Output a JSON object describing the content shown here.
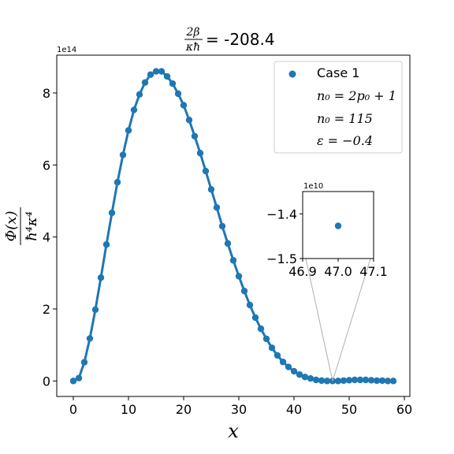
{
  "chart_data": {
    "type": "line",
    "title": {
      "numerator": "2β",
      "denominator": "κħ",
      "value": "= -208.4"
    },
    "xlabel": "x",
    "ylabel": {
      "numerator": "Φ(x)",
      "denominator": "ħ⁴κ⁴"
    },
    "xlim": [
      -3,
      61
    ],
    "ylim": [
      -0.43,
      9.05
    ],
    "y_offset_text": "1e14",
    "x_ticks": [
      0,
      10,
      20,
      30,
      40,
      50,
      60
    ],
    "y_ticks": [
      0,
      2,
      4,
      6,
      8
    ],
    "x_tick_labels": [
      "0",
      "10",
      "20",
      "30",
      "40",
      "50",
      "60"
    ],
    "y_tick_labels": [
      "0",
      "2",
      "4",
      "6",
      "8"
    ],
    "color": "#1f77b4",
    "grid": false,
    "legend": {
      "position": "top-right",
      "marker_label": "Case 1",
      "lines": [
        "n₀ = 2p₀ + 1",
        "n₀ = 115",
        "ε = −0.4"
      ]
    },
    "series": [
      {
        "name": "Case 1",
        "x": [
          0,
          1,
          2,
          3,
          4,
          5,
          6,
          7,
          8,
          9,
          10,
          11,
          12,
          13,
          14,
          15,
          16,
          17,
          18,
          19,
          20,
          21,
          22,
          23,
          24,
          25,
          26,
          27,
          28,
          29,
          30,
          31,
          32,
          33,
          34,
          35,
          36,
          37,
          38,
          39,
          40,
          41,
          42,
          43,
          44,
          45,
          46,
          47,
          48,
          49,
          50,
          51,
          52,
          53,
          54,
          55,
          56,
          57,
          58
        ],
        "y": [
          0,
          0.08,
          0.52,
          1.18,
          1.98,
          2.87,
          3.79,
          4.67,
          5.52,
          6.28,
          6.96,
          7.53,
          7.96,
          8.29,
          8.51,
          8.6,
          8.6,
          8.46,
          8.26,
          7.98,
          7.66,
          7.25,
          6.8,
          6.33,
          5.83,
          5.32,
          4.82,
          4.3,
          3.82,
          3.35,
          2.91,
          2.5,
          2.11,
          1.76,
          1.45,
          1.17,
          0.92,
          0.71,
          0.53,
          0.39,
          0.27,
          0.18,
          0.11,
          0.07,
          0.03,
          0.01,
          0,
          0,
          0,
          0.01,
          0.02,
          0.03,
          0.03,
          0.03,
          0.02,
          0.01,
          0.01,
          0,
          0
        ]
      }
    ],
    "inset": {
      "offset_text": "1e10",
      "xlim": [
        46.9,
        47.1
      ],
      "ylim": [
        -1.5,
        -1.35
      ],
      "x_ticks": [
        46.9,
        47.0,
        47.1
      ],
      "y_ticks": [
        -1.4,
        -1.5
      ],
      "x_tick_labels": [
        "46.9",
        "47.0",
        "47.1"
      ],
      "y_tick_labels": [
        "−1.4",
        "−1.5"
      ],
      "point": {
        "x": 47.0,
        "y": -1.427
      }
    }
  }
}
